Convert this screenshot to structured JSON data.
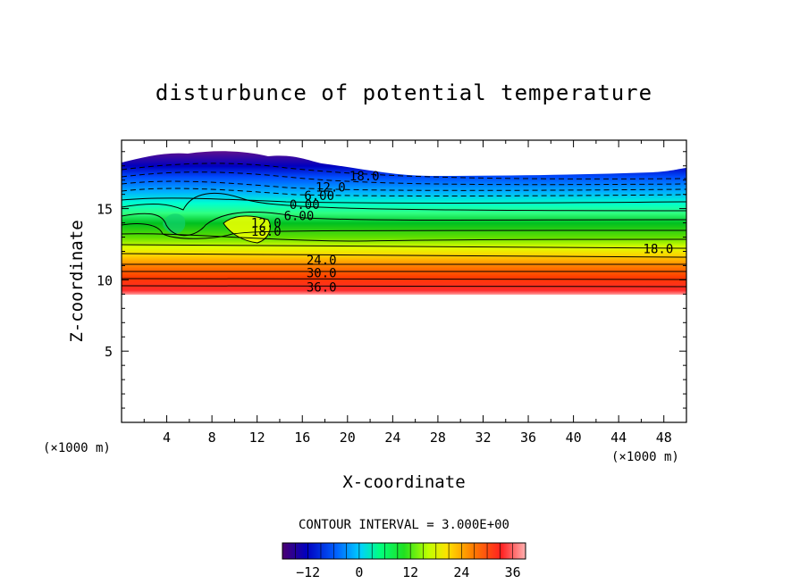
{
  "chart_data": {
    "type": "heatmap",
    "title": "disturbunce of potential temperature",
    "xlabel": "X-coordinate",
    "ylabel": "Z-coordinate",
    "x_unit": "(×1000 m)",
    "y_unit": "(×1000 m)",
    "xlim": [
      0,
      50
    ],
    "ylim": [
      0,
      19.8
    ],
    "x_ticks": [
      4,
      8,
      12,
      16,
      20,
      24,
      28,
      32,
      36,
      40,
      44,
      48
    ],
    "y_ticks": [
      5,
      10,
      15
    ],
    "contour_interval_text": "CONTOUR INTERVAL = 3.000E+00",
    "contour_interval": 3.0,
    "value_range": [
      -18,
      39
    ],
    "colorbar_ticks": [
      -12,
      0,
      12,
      24,
      36
    ],
    "contour_labels": [
      {
        "text": "18.0",
        "x": 21.5,
        "z": 17.3
      },
      {
        "text": "12.0",
        "x": 18.5,
        "z": 16.5
      },
      {
        "text": "6.00",
        "x": 17.5,
        "z": 15.9
      },
      {
        "text": "0.00",
        "x": 16.2,
        "z": 15.3
      },
      {
        "text": "6.00",
        "x": 15.7,
        "z": 14.5
      },
      {
        "text": "12.0",
        "x": 12.8,
        "z": 14.0
      },
      {
        "text": "18.0",
        "x": 12.8,
        "z": 13.4
      },
      {
        "text": "18.0",
        "x": 47.5,
        "z": 12.2
      },
      {
        "text": "24.0",
        "x": 17.7,
        "z": 11.4
      },
      {
        "text": "30.0",
        "x": 17.7,
        "z": 10.5
      },
      {
        "text": "36.0",
        "x": 17.7,
        "z": 9.5
      }
    ]
  }
}
